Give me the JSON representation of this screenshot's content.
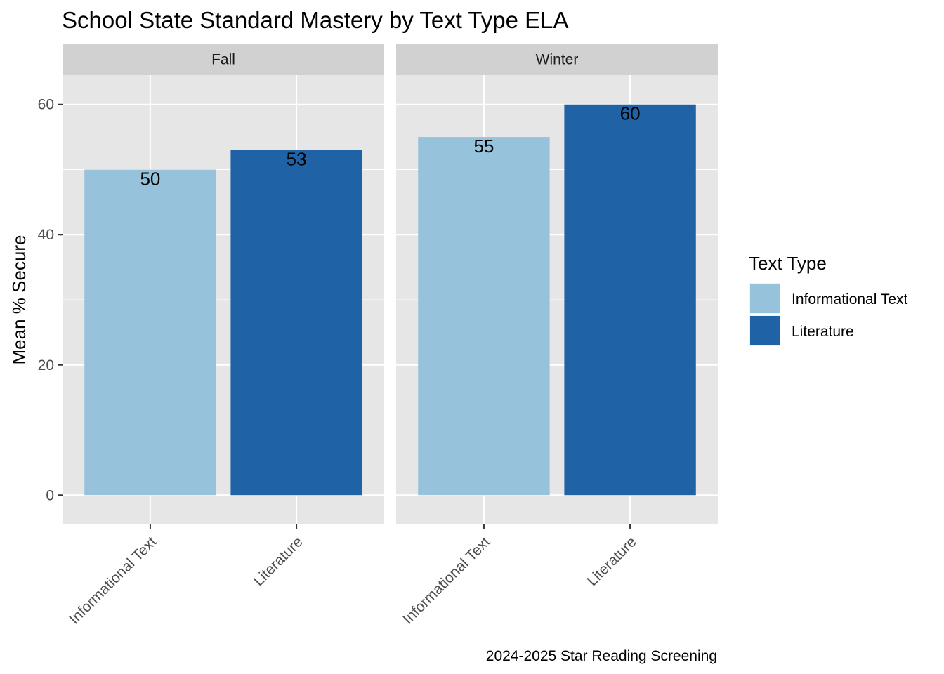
{
  "chart_data": {
    "type": "bar",
    "title": "School State Standard Mastery by Text Type ELA",
    "ylabel": "Mean % Secure",
    "xlabel": "",
    "caption": "2024-2025 Star Reading Screening",
    "ylim": [
      -4.5,
      64.5
    ],
    "yticks": [
      0,
      20,
      40,
      60
    ],
    "categories": [
      "Informational Text",
      "Literature"
    ],
    "facets": [
      {
        "name": "Fall",
        "values": [
          50,
          53
        ]
      },
      {
        "name": "Winter",
        "values": [
          55,
          60
        ]
      }
    ],
    "legend": {
      "title": "Text Type",
      "placement": "right",
      "items": [
        {
          "label": "Informational Text",
          "color": "#97c2db"
        },
        {
          "label": "Literature",
          "color": "#1f63a6"
        }
      ]
    },
    "grid": true,
    "colors": {
      "panel_background": "#e6e6e6",
      "strip_background": "#d1d1d1",
      "grid": "#ffffff"
    }
  }
}
